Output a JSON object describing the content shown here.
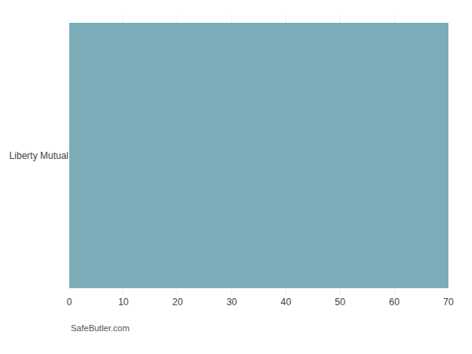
{
  "chart_data": {
    "type": "bar",
    "orientation": "horizontal",
    "categories": [
      "Liberty Mutual"
    ],
    "values": [
      70
    ],
    "color": "#7BADB8",
    "xlim": [
      0,
      70
    ],
    "xticks": [
      0,
      10,
      20,
      30,
      40,
      50,
      60,
      70
    ],
    "grid": true,
    "annotations": [
      "SafeButler.com"
    ]
  }
}
